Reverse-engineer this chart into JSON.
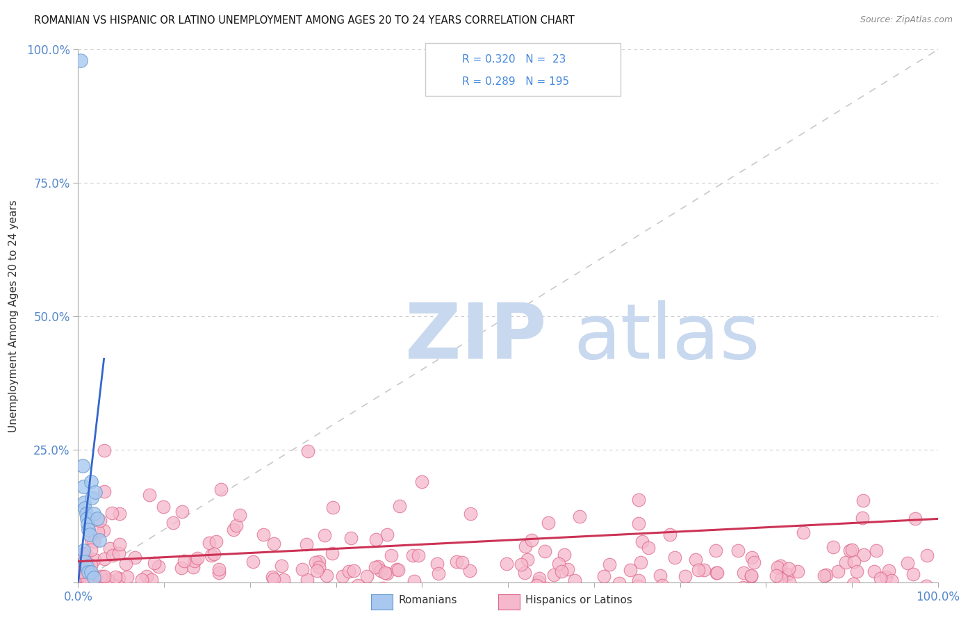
{
  "title": "ROMANIAN VS HISPANIC OR LATINO UNEMPLOYMENT AMONG AGES 20 TO 24 YEARS CORRELATION CHART",
  "source": "Source: ZipAtlas.com",
  "ylabel": "Unemployment Among Ages 20 to 24 years",
  "xlim": [
    0,
    1
  ],
  "ylim": [
    0,
    1
  ],
  "r_romanian": 0.32,
  "n_romanian": 23,
  "r_hispanic": 0.289,
  "n_hispanic": 195,
  "color_romanian_fill": "#a8c8f0",
  "color_hispanic_fill": "#f5b8cc",
  "color_romanian_edge": "#6699cc",
  "color_hispanic_edge": "#dd6688",
  "color_romanian_line": "#3366cc",
  "color_hispanic_line": "#cc3355",
  "background_color": "#ffffff",
  "grid_color": "#cccccc",
  "watermark_zip": "ZIP",
  "watermark_atlas": "atlas",
  "watermark_color_zip": "#c8d8ee",
  "watermark_color_atlas": "#c8d8ee",
  "legend_label_romanian": "Romanians",
  "legend_label_hispanic": "Hispanics or Latinos",
  "romanian_x": [
    0.003,
    0.005,
    0.006,
    0.007,
    0.008,
    0.009,
    0.01,
    0.011,
    0.012,
    0.013,
    0.015,
    0.016,
    0.018,
    0.02,
    0.022,
    0.025,
    0.006,
    0.008,
    0.01,
    0.012,
    0.015,
    0.018,
    0.01
  ],
  "romanian_y": [
    0.98,
    0.22,
    0.18,
    0.15,
    0.14,
    0.13,
    0.12,
    0.11,
    0.1,
    0.09,
    0.19,
    0.16,
    0.13,
    0.17,
    0.12,
    0.08,
    0.06,
    0.04,
    0.03,
    0.02,
    0.02,
    0.01,
    -0.04
  ],
  "blue_trend_x": [
    0.0,
    0.03
  ],
  "blue_trend_y": [
    0.0,
    0.42
  ],
  "pink_trend_x": [
    0.0,
    1.0
  ],
  "pink_trend_y": [
    0.04,
    0.12
  ]
}
